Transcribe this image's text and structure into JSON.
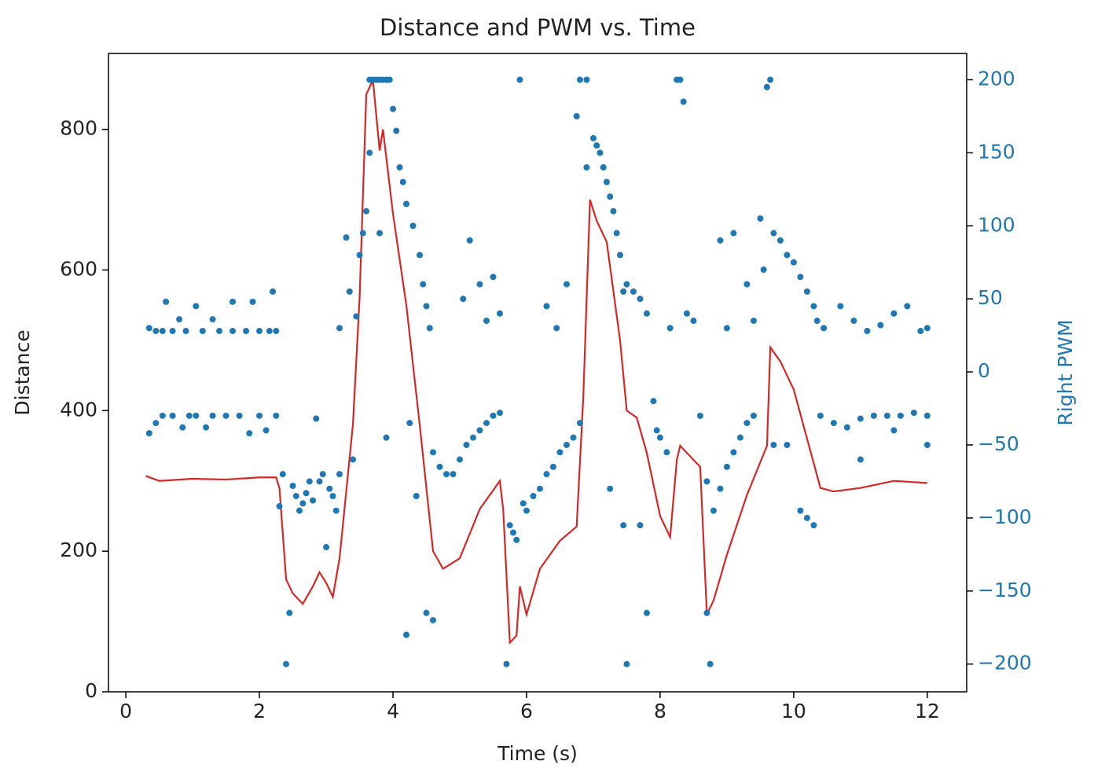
{
  "chart_data": {
    "type": "line",
    "title": "Distance and PWM vs. Time",
    "xlabel": "Time (s)",
    "ylabel": "Distance",
    "y2label": "Right PWM",
    "xlim": [
      -0.26,
      12.59
    ],
    "ylim": [
      0,
      908
    ],
    "y2lim": [
      -219,
      218
    ],
    "xticks": [
      0,
      2,
      4,
      6,
      8,
      10,
      12
    ],
    "yticks": [
      0,
      200,
      400,
      600,
      800
    ],
    "y2ticks": [
      {
        "value": -200,
        "label": "−200"
      },
      {
        "value": -150,
        "label": "−150"
      },
      {
        "value": -100,
        "label": "−100"
      },
      {
        "value": -50,
        "label": "−50"
      },
      0,
      50,
      100,
      150,
      200
    ],
    "y2color": "#1f77b4",
    "series": [
      {
        "type": "line",
        "color": "#d62728",
        "x": [
          0.3,
          0.5,
          1,
          1.5,
          2,
          2.25,
          2.3,
          2.4,
          2.5,
          2.65,
          2.8,
          2.9,
          3.0,
          3.1,
          3.2,
          3.4,
          3.5,
          3.6,
          3.7,
          3.8,
          3.85,
          3.9,
          4.0,
          4.2,
          4.4,
          4.6,
          4.75,
          5.0,
          5.3,
          5.6,
          5.65,
          5.75,
          5.85,
          5.9,
          6.0,
          6.2,
          6.5,
          6.75,
          6.85,
          6.95,
          7.05,
          7.2,
          7.4,
          7.5,
          7.65,
          7.8,
          8.0,
          8.15,
          8.25,
          8.3,
          8.4,
          8.6,
          8.7,
          8.8,
          9.0,
          9.3,
          9.6,
          9.65,
          9.8,
          10.0,
          10.2,
          10.4,
          10.6,
          11,
          11.5,
          12.0
        ],
        "values": [
          307,
          300,
          303,
          302,
          305,
          305,
          290,
          160,
          140,
          125,
          150,
          170,
          155,
          135,
          190,
          380,
          560,
          850,
          870,
          770,
          800,
          760,
          680,
          550,
          380,
          200,
          175,
          190,
          260,
          300,
          260,
          70,
          80,
          150,
          110,
          175,
          215,
          235,
          420,
          700,
          670,
          640,
          500,
          400,
          390,
          340,
          250,
          220,
          330,
          350,
          340,
          320,
          110,
          130,
          195,
          280,
          350,
          490,
          470,
          430,
          360,
          290,
          285,
          290,
          300,
          297
        ]
      },
      {
        "type": "scatter",
        "color": "#1f77b4",
        "axis": "y2",
        "x": [
          0.35,
          0.35,
          0.45,
          0.45,
          0.55,
          0.55,
          0.6,
          0.7,
          0.7,
          0.8,
          0.85,
          0.9,
          0.95,
          1.05,
          1.05,
          1.15,
          1.2,
          1.3,
          1.3,
          1.4,
          1.5,
          1.6,
          1.6,
          1.7,
          1.8,
          1.85,
          1.9,
          2.0,
          2.0,
          2.1,
          2.15,
          2.2,
          2.25,
          2.25,
          2.3,
          2.35,
          2.4,
          2.45,
          2.5,
          2.55,
          2.6,
          2.65,
          2.7,
          2.75,
          2.8,
          2.85,
          2.9,
          2.95,
          3.0,
          3.05,
          3.1,
          3.15,
          3.2,
          3.2,
          3.3,
          3.35,
          3.4,
          3.45,
          3.5,
          3.55,
          3.6,
          3.65,
          3.65,
          3.7,
          3.75,
          3.8,
          3.85,
          3.9,
          3.95,
          3.8,
          3.9,
          4.0,
          4.05,
          4.1,
          4.15,
          4.2,
          4.2,
          4.25,
          4.3,
          4.35,
          4.4,
          4.45,
          4.5,
          4.55,
          4.5,
          4.6,
          4.6,
          4.7,
          4.8,
          4.9,
          5.0,
          5.1,
          5.2,
          5.3,
          5.4,
          5.5,
          5.6,
          5.05,
          5.15,
          5.3,
          5.4,
          5.5,
          5.6,
          5.7,
          5.75,
          5.8,
          5.85,
          5.9,
          5.95,
          6.0,
          6.1,
          6.2,
          6.3,
          6.4,
          6.5,
          6.6,
          6.7,
          6.8,
          6.3,
          6.45,
          6.6,
          6.75,
          6.8,
          6.9,
          6.9,
          7.0,
          7.05,
          7.1,
          7.15,
          7.2,
          7.25,
          7.3,
          7.35,
          7.4,
          7.45,
          7.5,
          7.6,
          7.7,
          7.8,
          7.25,
          7.5,
          7.45,
          7.7,
          7.8,
          7.9,
          7.95,
          8.0,
          8.1,
          8.15,
          8.25,
          8.3,
          8.35,
          8.4,
          8.5,
          8.6,
          8.7,
          8.7,
          8.75,
          8.8,
          8.9,
          9.0,
          9.1,
          9.2,
          9.3,
          9.4,
          8.9,
          9.0,
          9.1,
          9.3,
          9.4,
          9.5,
          9.55,
          9.6,
          9.65,
          9.7,
          9.8,
          9.9,
          10.0,
          10.1,
          10.2,
          10.3,
          10.35,
          10.45,
          9.7,
          9.9,
          10.1,
          10.2,
          10.3,
          10.4,
          10.6,
          10.8,
          11.0,
          11.2,
          11.4,
          11.6,
          11.8,
          12.0,
          10.7,
          10.9,
          11.1,
          11.3,
          11.5,
          11.7,
          11.9,
          12.0,
          11.0,
          11.5,
          12.0
        ],
        "values": [
          30,
          -42,
          28,
          -35,
          28,
          -30,
          48,
          28,
          -30,
          36,
          -38,
          28,
          -30,
          45,
          -30,
          28,
          -38,
          36,
          -30,
          28,
          -30,
          48,
          28,
          -30,
          28,
          -42,
          48,
          28,
          -30,
          -40,
          28,
          55,
          -30,
          28,
          -92,
          -70,
          -200,
          -165,
          -78,
          -85,
          -95,
          -90,
          -83,
          -75,
          -88,
          -32,
          -75,
          -70,
          -120,
          -80,
          -85,
          -95,
          -70,
          30,
          92,
          55,
          -60,
          38,
          80,
          95,
          110,
          150,
          200,
          200,
          200,
          200,
          200,
          200,
          200,
          95,
          -45,
          180,
          165,
          140,
          130,
          115,
          -180,
          -35,
          100,
          -85,
          80,
          60,
          45,
          30,
          -165,
          -170,
          -55,
          -65,
          -70,
          -70,
          -60,
          -50,
          -45,
          -40,
          -35,
          -30,
          -28,
          50,
          90,
          60,
          35,
          65,
          40,
          -200,
          -105,
          -110,
          -115,
          200,
          -90,
          -95,
          -85,
          -80,
          -70,
          -65,
          -55,
          -50,
          -45,
          -35,
          45,
          30,
          60,
          175,
          200,
          200,
          140,
          160,
          155,
          150,
          140,
          130,
          120,
          110,
          95,
          80,
          55,
          60,
          55,
          50,
          40,
          -80,
          -200,
          -105,
          -105,
          -165,
          -20,
          -40,
          -45,
          -55,
          30,
          200,
          200,
          185,
          40,
          35,
          -30,
          -75,
          -165,
          -200,
          -95,
          -80,
          -65,
          -55,
          -45,
          -35,
          -30,
          90,
          30,
          95,
          60,
          35,
          105,
          70,
          195,
          200,
          95,
          90,
          80,
          75,
          65,
          55,
          45,
          35,
          30,
          -50,
          -50,
          -95,
          -100,
          -105,
          -30,
          -35,
          -38,
          -32,
          -30,
          -30,
          -30,
          -28,
          -30,
          45,
          35,
          28,
          32,
          40,
          45,
          28,
          30,
          -60,
          -40,
          -50
        ]
      }
    ]
  }
}
